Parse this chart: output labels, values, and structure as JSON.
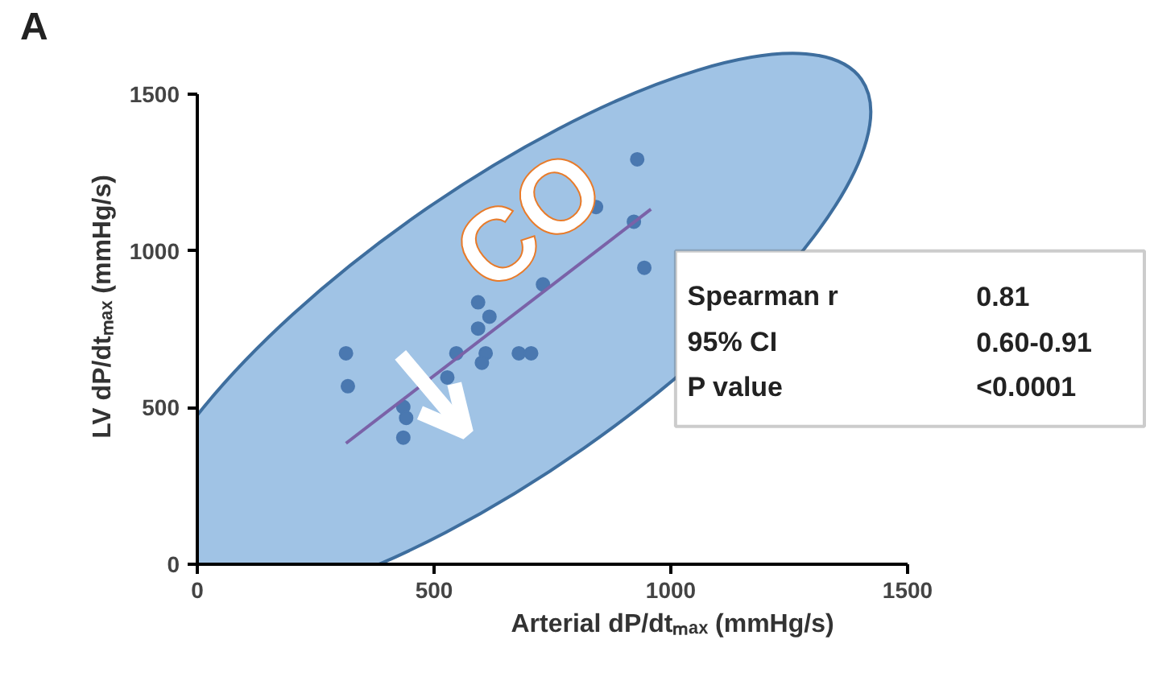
{
  "chart_data": {
    "type": "scatter",
    "title": "A",
    "xlabel": "Arterial dP/dtₘₐₓ (mmHg/s)",
    "ylabel": "LV dP/dtₘₐₓ (mmHg/s)",
    "series": [
      {
        "color": "#4a78b0",
        "marker": "circle",
        "x": [
          314,
          318,
          435,
          441,
          435,
          528,
          547,
          609,
          601,
          593,
          593,
          617,
          679,
          705,
          730,
          842,
          929,
          922,
          944
        ],
        "values": [
          673,
          568,
          502,
          467,
          404,
          596,
          673,
          673,
          643,
          836,
          752,
          790,
          673,
          673,
          893,
          1140,
          1292,
          1093,
          946
        ]
      },
      {
        "type": "line",
        "color": "#7a62a8",
        "x": [
          314,
          958
        ],
        "values": [
          386,
          1133
        ]
      }
    ],
    "xlim": [
      0,
      1500
    ],
    "ylim": [
      0,
      1500
    ],
    "xticks": [
      0,
      500,
      1000,
      1500
    ],
    "yticks": [
      0,
      500,
      1000,
      1500
    ],
    "grid": false,
    "annotations": [
      "CO",
      "Spearman r",
      "0.81",
      "95% CI",
      "0.60-0.91",
      "P value",
      "<0.0001"
    ]
  }
}
